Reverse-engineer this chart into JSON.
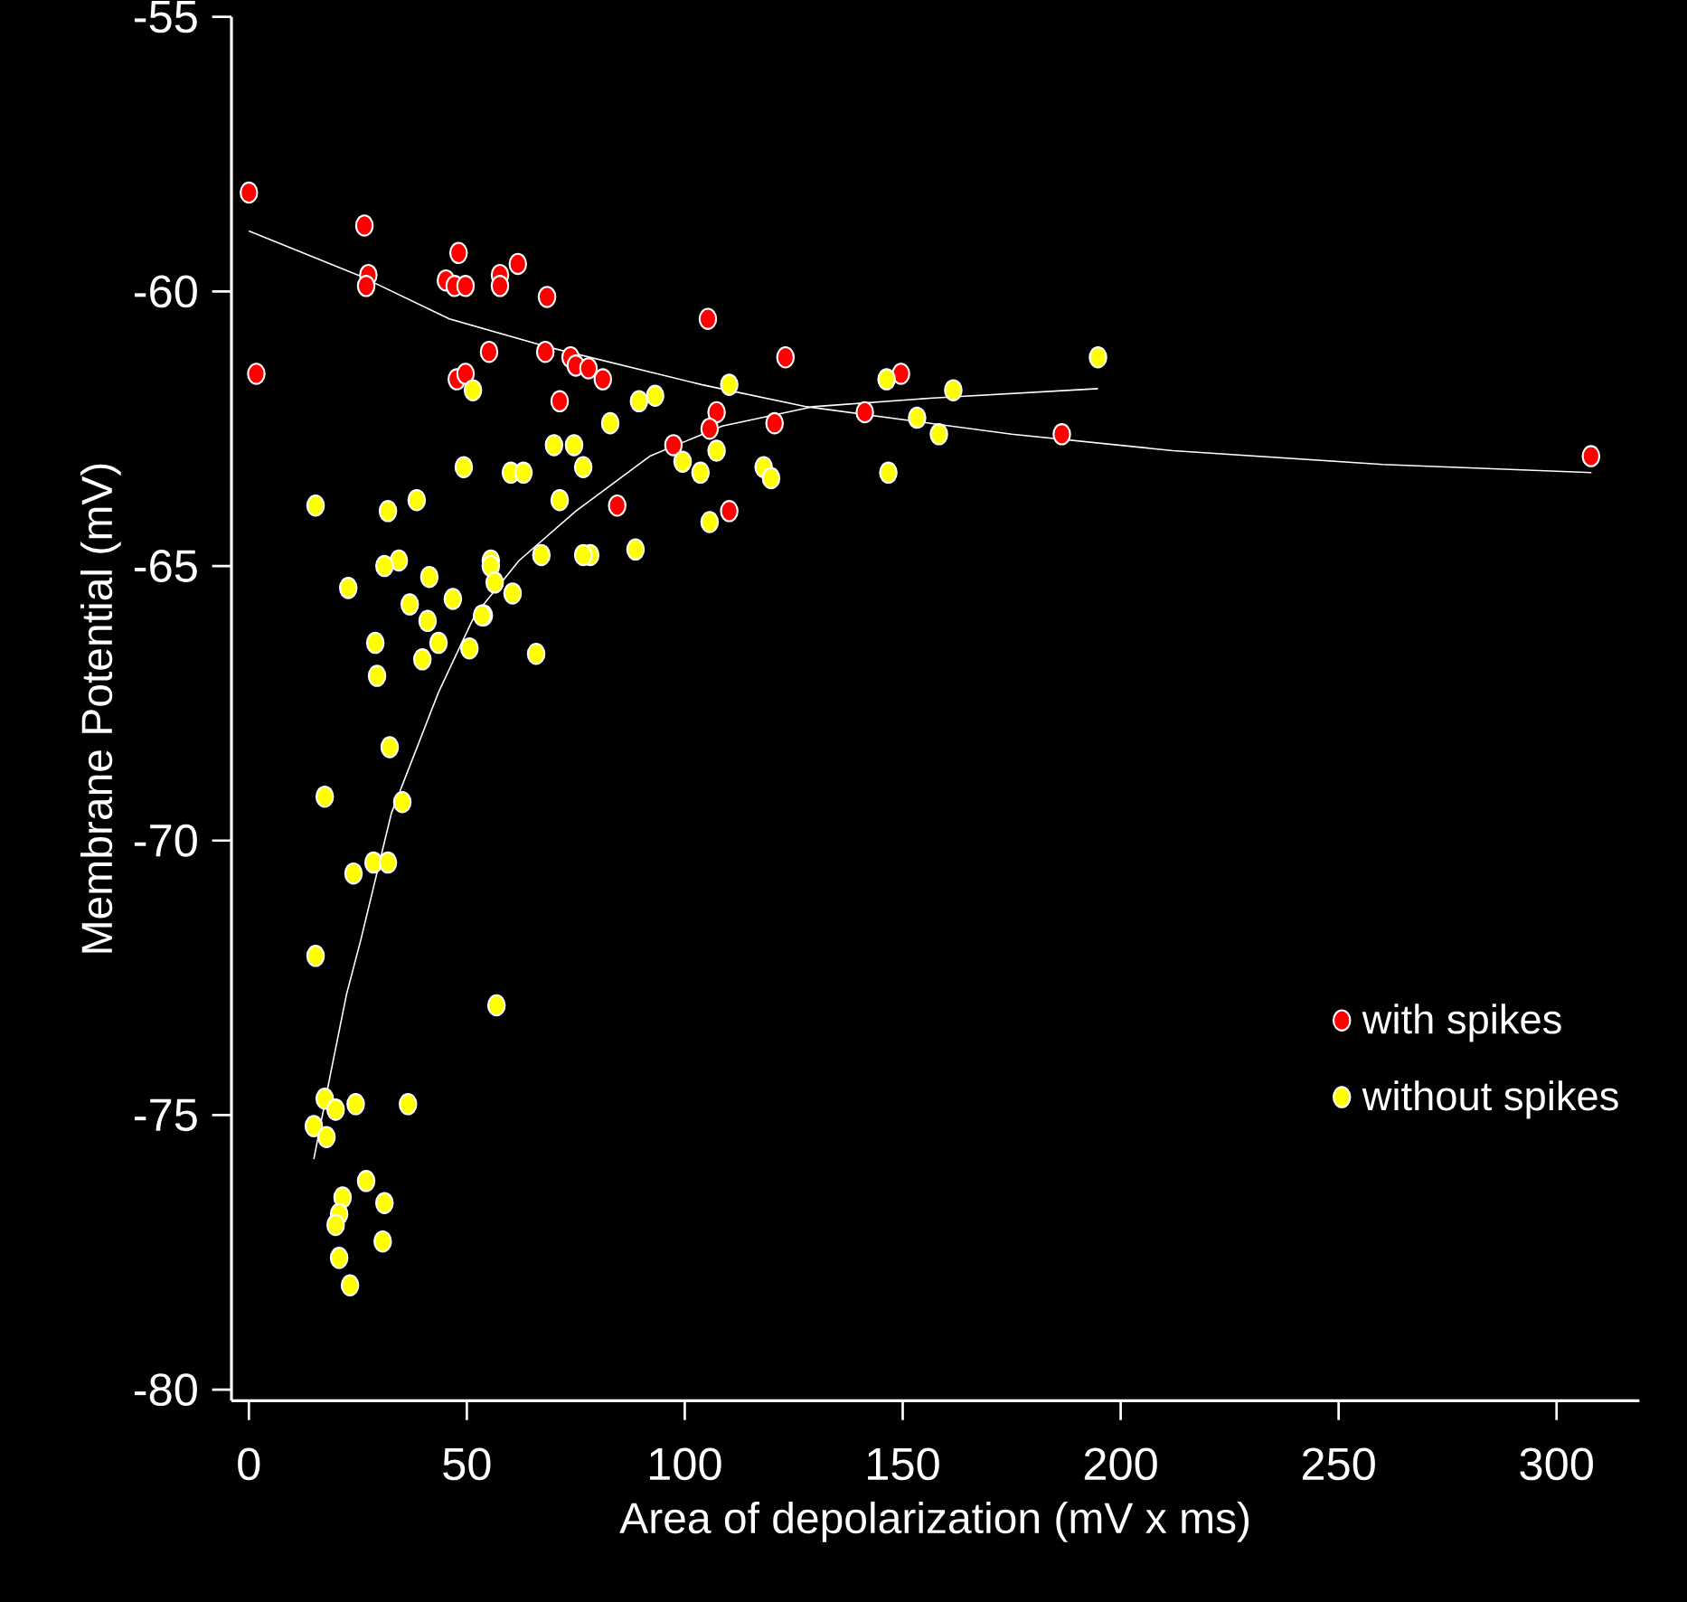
{
  "chart_data": {
    "type": "scatter",
    "xlabel": "Area of depolarization (mV x ms)",
    "ylabel": "Membrane Potential (mV)",
    "xlim": [
      -4,
      319
    ],
    "ylim": [
      -80.2,
      -55
    ],
    "xticks": [
      0,
      50,
      100,
      150,
      200,
      250,
      300
    ],
    "yticks": [
      -80,
      -75,
      -70,
      -65,
      -60,
      -55
    ],
    "grid": false,
    "legend": "bottom right",
    "marker": "circle",
    "series": [
      {
        "name": "with spikes",
        "color": "#ff0000",
        "x": [
          0,
          1.7,
          26.5,
          27.4,
          26.9,
          48.1,
          45.2,
          47.2,
          49.7,
          55.1,
          57.6,
          57.6,
          61.7,
          68.4,
          47.7,
          49.7,
          68.0,
          73.8,
          75.0,
          77.9,
          81.2,
          71.3,
          105.3,
          123.1,
          149.6,
          141.3,
          120.6,
          107.3,
          105.7,
          97.4,
          84.5,
          110.2,
          186.5,
          307.9
        ],
        "values": [
          -58.2,
          -61.5,
          -58.8,
          -59.7,
          -59.9,
          -59.3,
          -59.8,
          -59.9,
          -59.9,
          -61.1,
          -59.7,
          -59.9,
          -59.5,
          -60.1,
          -61.6,
          -61.5,
          -61.1,
          -61.2,
          -61.35,
          -61.4,
          -61.6,
          -62.0,
          -60.5,
          -61.2,
          -61.5,
          -62.2,
          -62.4,
          -62.2,
          -62.5,
          -62.8,
          -63.9,
          -64.0,
          -62.6,
          -63.0
        ]
      },
      {
        "name": "without spikes",
        "color": "#ffff00",
        "x": [
          51.4,
          110.2,
          89.5,
          93.2,
          82.9,
          70.0,
          74.6,
          76.7,
          49.3,
          60.1,
          63.0,
          71.3,
          67.1,
          78.3,
          76.7,
          88.7,
          55.5,
          146.3,
          161.6,
          153.3,
          158.3,
          194.8,
          146.7,
          107.3,
          99.5,
          103.6,
          118.1,
          119.8,
          105.7,
          15.3,
          31.9,
          38.5,
          34.4,
          31.1,
          22.8,
          41.4,
          36.9,
          46.8,
          41.0,
          55.5,
          56.4,
          60.5,
          53.9,
          53.5,
          43.5,
          39.8,
          50.6,
          29.0,
          29.4,
          65.9,
          32.3,
          17.4,
          35.2,
          28.6,
          31.9,
          24.0,
          15.3,
          56.8,
          17.4,
          19.9,
          24.5,
          36.5,
          14.9,
          17.8,
          26.9,
          21.5,
          31.1,
          20.7,
          19.9,
          30.7,
          20.7,
          23.2
        ],
        "values": [
          -61.8,
          -61.7,
          -62.0,
          -61.9,
          -62.4,
          -62.8,
          -62.8,
          -63.2,
          -63.2,
          -63.3,
          -63.3,
          -63.8,
          -64.8,
          -64.8,
          -64.8,
          -64.7,
          -64.9,
          -61.6,
          -61.8,
          -62.3,
          -62.6,
          -61.2,
          -63.3,
          -62.9,
          -63.1,
          -63.3,
          -63.2,
          -63.4,
          -64.2,
          -63.9,
          -64.0,
          -63.8,
          -64.9,
          -65.0,
          -65.4,
          -65.2,
          -65.7,
          -65.6,
          -66.0,
          -65.0,
          -65.3,
          -65.5,
          -65.9,
          -65.9,
          -66.4,
          -66.7,
          -66.5,
          -66.4,
          -67.0,
          -66.6,
          -68.3,
          -69.2,
          -69.3,
          -70.4,
          -70.4,
          -70.6,
          -72.1,
          -73.0,
          -74.7,
          -74.9,
          -74.8,
          -74.8,
          -75.2,
          -75.4,
          -76.2,
          -76.5,
          -76.6,
          -76.8,
          -77.0,
          -77.3,
          -77.6,
          -78.1
        ]
      },
      {
        "type": "line",
        "marker": "none",
        "color": "#ffffff",
        "x": [
          0,
          25,
          46,
          68,
          104,
          128,
          175,
          212,
          260,
          308
        ],
        "values": [
          -58.9,
          -59.7,
          -60.5,
          -61.0,
          -61.7,
          -62.1,
          -62.6,
          -62.9,
          -63.15,
          -63.3
        ]
      },
      {
        "type": "line",
        "marker": "none",
        "color": "#ffffff",
        "x": [
          14.9,
          18.6,
          22.4,
          25.7,
          32.7,
          43.5,
          51.8,
          62,
          75,
          92,
          108.6,
          129.3,
          157,
          194.8
        ],
        "values": [
          -75.8,
          -74.3,
          -72.8,
          -71.8,
          -69.5,
          -67.3,
          -65.9,
          -64.9,
          -64.0,
          -63.0,
          -62.45,
          -62.1,
          -61.94,
          -61.77
        ]
      }
    ]
  }
}
